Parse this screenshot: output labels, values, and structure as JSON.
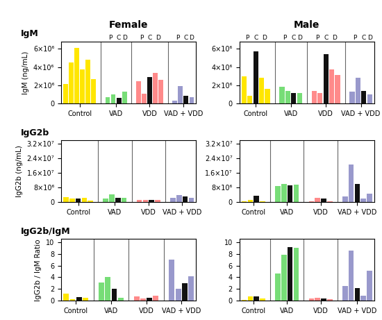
{
  "chart_data": [
    {
      "type": "bar",
      "title": "Female",
      "panel_label": "IgM",
      "ylabel": "IgM (ng/mL)",
      "categories": [
        "Control",
        "VAD",
        "VDD",
        "VAD + VDD"
      ],
      "values": [
        [
          2100000.0,
          4500000.0,
          6100000.0,
          3700000.0,
          4800000.0,
          2700000.0
        ],
        [
          650000.0,
          950000.0,
          600000.0,
          1300000.0
        ],
        [
          2400000.0,
          1050000.0,
          2900000.0,
          3350000.0,
          2600000.0
        ],
        [
          300000.0,
          1900000.0,
          850000.0,
          650000.0
        ]
      ],
      "colors": [
        [
          "#FFE600",
          "#FFE600",
          "#FFE600",
          "#FFE600",
          "#FFE600",
          "#FFE600"
        ],
        [
          "#77DD77",
          "#77DD77",
          "#111111",
          "#77DD77"
        ],
        [
          "#FF8A8A",
          "#FF8A8A",
          "#111111",
          "#FF8A8A",
          "#FF8A8A"
        ],
        [
          "#9999CC",
          "#9999CC",
          "#111111",
          "#9999CC"
        ]
      ],
      "annotations": [
        [],
        [
          {
            "text": "P",
            "bars": [
              0,
              1
            ]
          },
          {
            "text": "C",
            "bars": [
              2
            ]
          },
          {
            "text": "D",
            "bars": [
              3
            ]
          }
        ],
        [
          {
            "text": "P",
            "bars": [
              0,
              1
            ]
          },
          {
            "text": "C",
            "bars": [
              2
            ]
          },
          {
            "text": "D",
            "bars": [
              3,
              4
            ]
          }
        ],
        [
          {
            "text": "P",
            "bars": [
              0,
              1
            ]
          },
          {
            "text": "C",
            "bars": [
              2
            ]
          },
          {
            "text": "D",
            "bars": [
              3
            ]
          }
        ]
      ],
      "ylim": [
        0,
        6800000.0
      ],
      "yticks": [
        0,
        {
          "value": 2000000.0,
          "label": "2×10⁶"
        },
        {
          "value": 4000000.0,
          "label": "4×10⁶"
        },
        {
          "value": 6000000.0,
          "label": "6×10⁶"
        }
      ]
    },
    {
      "type": "bar",
      "title": "Male",
      "categories": [
        "Control",
        "VAD",
        "VDD",
        "VAD + VDD"
      ],
      "values": [
        [
          3000000.0,
          800000.0,
          5700000.0,
          2800000.0,
          1600000.0
        ],
        [
          1800000.0,
          1350000.0,
          1100000.0,
          1100000.0
        ],
        [
          1400000.0,
          1100000.0,
          5400000.0,
          3700000.0,
          3100000.0
        ],
        [
          1300000.0,
          2800000.0,
          1400000.0,
          1000000.0
        ]
      ],
      "colors": [
        [
          "#FFE600",
          "#FFE600",
          "#111111",
          "#FFE600",
          "#FFE600"
        ],
        [
          "#77DD77",
          "#77DD77",
          "#111111",
          "#77DD77"
        ],
        [
          "#FF8A8A",
          "#FF8A8A",
          "#111111",
          "#FF8A8A",
          "#FF8A8A"
        ],
        [
          "#9999CC",
          "#9999CC",
          "#111111",
          "#9999CC"
        ]
      ],
      "annotations": [
        [
          {
            "text": "P",
            "bars": [
              0,
              1
            ]
          },
          {
            "text": "C",
            "bars": [
              2
            ]
          },
          {
            "text": "D",
            "bars": [
              3,
              4
            ]
          }
        ],
        [
          {
            "text": "P",
            "bars": [
              0,
              1
            ]
          },
          {
            "text": "C",
            "bars": [
              2
            ]
          },
          {
            "text": "D",
            "bars": [
              3
            ]
          }
        ],
        [
          {
            "text": "P",
            "bars": [
              0,
              1
            ]
          },
          {
            "text": "C",
            "bars": [
              2
            ]
          },
          {
            "text": "D",
            "bars": [
              3,
              4
            ]
          }
        ],
        [
          {
            "text": "P",
            "bars": [
              0,
              1
            ]
          },
          {
            "text": "C",
            "bars": [
              2
            ]
          },
          {
            "text": "D",
            "bars": [
              3
            ]
          }
        ]
      ],
      "ylim": [
        0,
        6800000.0
      ],
      "yticks": [
        0,
        {
          "value": 2000000.0,
          "label": "2×10⁶"
        },
        {
          "value": 4000000.0,
          "label": "4×10⁶"
        },
        {
          "value": 6000000.0,
          "label": "6×10⁶"
        }
      ]
    },
    {
      "type": "bar",
      "panel_label": "IgG2b",
      "ylabel": "IgG2b (ng/mL)",
      "categories": [
        "Control",
        "VAD",
        "VDD",
        "VAD + VDD"
      ],
      "values": [
        [
          2800000.0,
          2100000.0,
          2000000.0,
          2400000.0,
          900000.0
        ],
        [
          1800000.0,
          4300000.0,
          2500000.0,
          2200000.0
        ],
        [
          1100000.0,
          1100000.0,
          1100000.0,
          1200000.0
        ],
        [
          2500000.0,
          3800000.0,
          3200000.0,
          2300000.0
        ]
      ],
      "colors": [
        [
          "#FFE600",
          "#FFE600",
          "#111111",
          "#FFE600",
          "#FFE600"
        ],
        [
          "#77DD77",
          "#77DD77",
          "#111111",
          "#77DD77"
        ],
        [
          "#FF8A8A",
          "#FF8A8A",
          "#111111",
          "#FF8A8A"
        ],
        [
          "#9999CC",
          "#9999CC",
          "#111111",
          "#9999CC"
        ]
      ],
      "ylim": [
        0,
        34000000.0
      ],
      "yticks": [
        0,
        {
          "value": 8000000.0,
          "label": "8×10⁶"
        },
        {
          "value": 16000000.0,
          "label": "1.6×10⁷"
        },
        {
          "value": 24000000.0,
          "label": "2.4×10⁷"
        },
        {
          "value": 32000000.0,
          "label": "3.2×10⁷"
        }
      ]
    },
    {
      "type": "bar",
      "categories": [
        "Control",
        "VAD",
        "VDD",
        "VAD + VDD"
      ],
      "values": [
        [
          500000.0,
          1000000.0,
          3500000.0,
          600000.0
        ],
        [
          8800000.0,
          10000000.0,
          9300000.0,
          9500000.0
        ],
        [
          500000.0,
          2200000.0,
          2100000.0,
          400000.0
        ],
        [
          3100000.0,
          20500000.0,
          10000000.0,
          2000000.0,
          4700000.0
        ]
      ],
      "colors": [
        [
          "#FFE600",
          "#FFE600",
          "#111111",
          "#FFE600"
        ],
        [
          "#77DD77",
          "#77DD77",
          "#111111",
          "#77DD77"
        ],
        [
          "#FF8A8A",
          "#FF8A8A",
          "#111111",
          "#FF8A8A"
        ],
        [
          "#9999CC",
          "#9999CC",
          "#111111",
          "#9999CC",
          "#9999CC"
        ]
      ],
      "ylim": [
        0,
        34000000.0
      ],
      "yticks": [
        0,
        {
          "value": 8000000.0,
          "label": "8×10⁶"
        },
        {
          "value": 16000000.0,
          "label": "1.6×10⁷"
        },
        {
          "value": 24000000.0,
          "label": "2.4×10⁷"
        },
        {
          "value": 32000000.0,
          "label": "3.2×10⁷"
        }
      ]
    },
    {
      "type": "bar",
      "panel_label": "IgG2b/IgM",
      "ylabel": "IgG2b / IgM Ratio",
      "categories": [
        "Control",
        "VAD",
        "VDD",
        "VAD + VDD"
      ],
      "values": [
        [
          1.2,
          0.3,
          0.6,
          0.5
        ],
        [
          3.1,
          4.1,
          2.0,
          0.5
        ],
        [
          0.8,
          0.35,
          0.5,
          0.9
        ],
        [
          7.0,
          2.0,
          3.0,
          4.2
        ]
      ],
      "colors": [
        [
          "#FFE600",
          "#FFE600",
          "#111111",
          "#FFE600"
        ],
        [
          "#77DD77",
          "#77DD77",
          "#111111",
          "#77DD77"
        ],
        [
          "#FF8A8A",
          "#FF8A8A",
          "#111111",
          "#FF8A8A"
        ],
        [
          "#9999CC",
          "#9999CC",
          "#111111",
          "#9999CC"
        ]
      ],
      "ylim": [
        0,
        10.5
      ],
      "yticks": [
        0,
        2,
        4,
        6,
        8,
        10
      ]
    },
    {
      "type": "bar",
      "categories": [
        "Control",
        "VAD",
        "VDD",
        "VAD + VDD"
      ],
      "values": [
        [
          0.2,
          0.7,
          0.7,
          0.4
        ],
        [
          4.6,
          7.8,
          9.1,
          9.0
        ],
        [
          0.4,
          0.55,
          0.4,
          0.3
        ],
        [
          2.5,
          8.6,
          2.2,
          0.9,
          5.1
        ]
      ],
      "colors": [
        [
          "#FFE600",
          "#FFE600",
          "#111111",
          "#FFE600"
        ],
        [
          "#77DD77",
          "#77DD77",
          "#111111",
          "#77DD77"
        ],
        [
          "#FF8A8A",
          "#FF8A8A",
          "#111111",
          "#FF8A8A"
        ],
        [
          "#9999CC",
          "#9999CC",
          "#111111",
          "#9999CC",
          "#9999CC"
        ]
      ],
      "ylim": [
        0,
        10.5
      ],
      "yticks": [
        0,
        2,
        4,
        6,
        8,
        10
      ]
    }
  ]
}
